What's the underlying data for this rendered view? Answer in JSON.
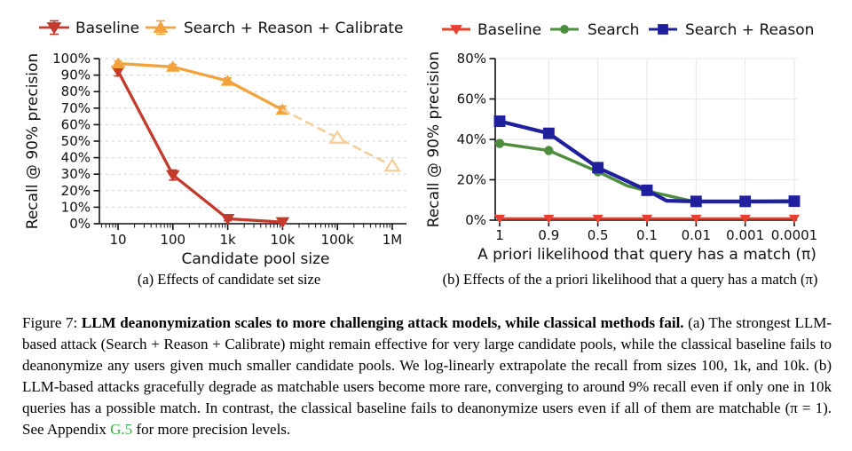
{
  "figure": {
    "caption_prefix": "Figure 7: ",
    "caption_bold": "LLM deanonymization scales to more challenging attack models, while classical methods fail.",
    "caption_body": " (a) The strongest LLM-based attack (Search + Reason + Calibrate) might remain effective for very large candidate pools, while the classical baseline fails to deanonymize any users given much smaller candidate pools. We log-linearly extrapolate the recall from sizes 100, 1k, and 10k. (b) LLM-based attacks gracefully degrade as matchable users become more rare, converging to around 9% recall even if only one in 10k queries has a possible match. In contrast, the classical baseline fails to deanonymize users even if all of them are matchable (π = 1). See Appendix ",
    "caption_link": "G.5",
    "caption_tail": " for more precision levels.",
    "link_color": "#3cb043"
  },
  "chart_data": [
    {
      "id": "a",
      "type": "line",
      "subcaption": "(a) Effects of candidate set size",
      "xlabel": "Candidate pool size",
      "ylabel": "Recall @ 90% precision",
      "x_scale": "log",
      "x_tick_values": [
        10,
        100,
        1000,
        10000,
        100000,
        1000000
      ],
      "x_tick_labels": [
        "10",
        "100",
        "1k",
        "10k",
        "100k",
        "1M"
      ],
      "y_tick_labels": [
        "0%",
        "10%",
        "20%",
        "30%",
        "40%",
        "50%",
        "60%",
        "70%",
        "80%",
        "90%",
        "100%"
      ],
      "ylim": [
        0,
        100
      ],
      "grid": "horizontal-dashed",
      "legend": {
        "position": "top",
        "items": [
          {
            "label": "Baseline",
            "color": "#c33b2c",
            "marker": "tri-down-errorbar"
          },
          {
            "label": "Search + Reason + Calibrate",
            "color": "#f3a33d",
            "marker": "tri-up-errorbar"
          }
        ]
      },
      "series": [
        {
          "name": "Baseline",
          "color": "#c33b2c",
          "marker": "tri-down",
          "dashed": false,
          "x": [
            10,
            100,
            1000,
            10000
          ],
          "values": [
            92.5,
            29.5,
            3,
            1
          ],
          "err": [
            3,
            3,
            1.2,
            0.8
          ]
        },
        {
          "name": "Search + Reason + Calibrate",
          "color": "#f3a33d",
          "marker": "tri-up",
          "dashed": false,
          "x": [
            10,
            100,
            1000,
            10000
          ],
          "values": [
            97,
            95,
            86.5,
            69
          ],
          "err": [
            1.6,
            1.5,
            1.8,
            2.2
          ]
        },
        {
          "name": "Search + Reason + Calibrate (log-linear extrapolation)",
          "color": "#f5cf9b",
          "marker": "tri-up-open",
          "dashed": true,
          "x": [
            10000,
            100000,
            1000000
          ],
          "values": [
            69,
            52,
            35
          ],
          "err": []
        }
      ]
    },
    {
      "id": "b",
      "type": "line",
      "subcaption": "(b) Effects of the a priori likelihood that a query has a match (π)",
      "xlabel": "A priori likelihood that query has a match (π)",
      "ylabel": "Recall @ 90% precision",
      "x_scale": "categorical",
      "x_tick_labels": [
        "1",
        "0.9",
        "0.5",
        "0.1",
        "0.01",
        "0.001",
        "0.0001"
      ],
      "y_tick_labels": [
        "0%",
        "20%",
        "40%",
        "60%",
        "80%"
      ],
      "ylim": [
        0,
        80
      ],
      "grid": "both-light",
      "legend": {
        "position": "top",
        "items": [
          {
            "label": "Baseline",
            "color": "#e8402f",
            "marker": "tri-down"
          },
          {
            "label": "Search",
            "color": "#4e8c3e",
            "marker": "circle"
          },
          {
            "label": "Search + Reason",
            "color": "#20209f",
            "marker": "square"
          }
        ]
      },
      "series": [
        {
          "name": "Baseline",
          "color": "#e8402f",
          "marker": "tri-down",
          "dashed": false,
          "xi": [
            0,
            1,
            2,
            3,
            4,
            5,
            6
          ],
          "values": [
            0.8,
            0.8,
            0.8,
            0.8,
            0.8,
            0.8,
            0.8
          ],
          "marker_skip": []
        },
        {
          "name": "Search",
          "color": "#4e8c3e",
          "marker": "circle",
          "dashed": false,
          "xi": [
            0,
            1,
            2,
            2.6,
            3,
            4,
            5,
            6
          ],
          "values": [
            38,
            34.5,
            24,
            17,
            14.5,
            9,
            9,
            9
          ],
          "marker_skip": [
            3
          ]
        },
        {
          "name": "Search + Reason",
          "color": "#20209f",
          "marker": "square",
          "dashed": false,
          "xi": [
            0,
            1,
            2,
            3,
            3.4,
            4,
            5,
            6
          ],
          "values": [
            49,
            43,
            26,
            14.8,
            9.6,
            9.3,
            9.3,
            9.4
          ],
          "marker_skip": [
            4
          ]
        }
      ]
    }
  ]
}
